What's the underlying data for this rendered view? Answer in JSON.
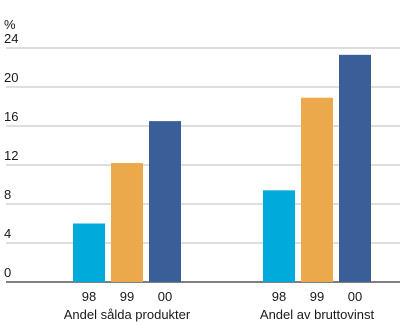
{
  "chart_data": {
    "type": "bar",
    "unit_label": "%",
    "ylim": [
      0,
      24
    ],
    "yticks": [
      0,
      4,
      8,
      12,
      16,
      20,
      24
    ],
    "grid": true,
    "groups": [
      {
        "label": "Andel sålda produkter",
        "bars": [
          {
            "category": "98",
            "value": 6.0,
            "color": "#00aadb"
          },
          {
            "category": "99",
            "value": 12.2,
            "color": "#eba94b"
          },
          {
            "category": "00",
            "value": 16.5,
            "color": "#3a5f98"
          }
        ]
      },
      {
        "label": "Andel av bruttovinst",
        "bars": [
          {
            "category": "98",
            "value": 9.4,
            "color": "#00aadb"
          },
          {
            "category": "99",
            "value": 18.9,
            "color": "#eba94b"
          },
          {
            "category": "00",
            "value": 23.3,
            "color": "#3a5f98"
          }
        ]
      }
    ]
  }
}
